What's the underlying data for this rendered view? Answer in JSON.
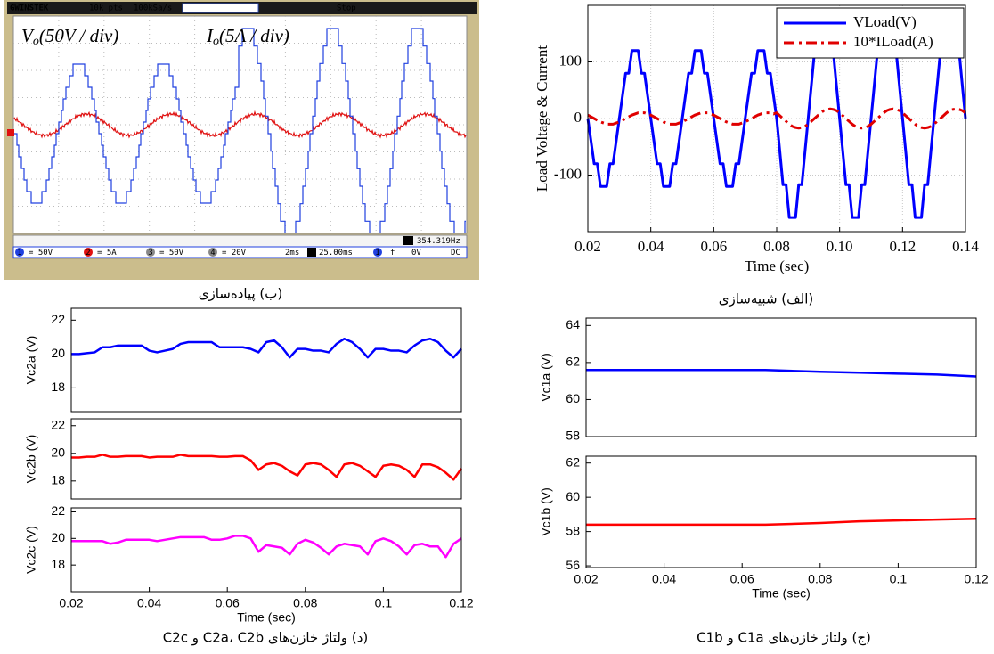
{
  "scope": {
    "brand": "GWINSTEK",
    "points": "10k pts",
    "rate": "100kSa/s",
    "state": "Stop",
    "vo": {
      "symbol": "V",
      "sub": "o",
      "scale": "(50V / div)"
    },
    "io": {
      "symbol": "I",
      "sub": "o",
      "scale": "(5A / div)"
    },
    "freq_icon": "F",
    "frequency": "354.319Hz",
    "channels": [
      {
        "id": "1",
        "scale": "= 50V"
      },
      {
        "id": "2",
        "scale": "= 5A"
      },
      {
        "id": "3",
        "scale": "= 50V"
      },
      {
        "id": "4",
        "scale": "= 20V"
      }
    ],
    "timebase": "2ms",
    "delay_icon": "H",
    "delay": "25.00ms",
    "trigger": {
      "source": "1",
      "slope": "f",
      "level": "0V",
      "coupling": "DC"
    }
  },
  "captions": {
    "b": "(ب) پیاده‌سازی",
    "a": "(الف) شبیه‌سازی",
    "d": "(د) ولتاژ خازن‌های C2a، C2b و C2c",
    "c": "(ج) ولتاژ خازن‌های C1a و C1b"
  },
  "chart_data": [
    {
      "type": "line",
      "ylabel": "Load Voltage & Current",
      "xlabel": "Time (sec)",
      "grid": true,
      "legend": "upper right",
      "xlim": [
        0.02,
        0.14
      ],
      "ylim": [
        -200,
        200
      ],
      "xticks": [
        0.02,
        0.04,
        0.06,
        0.08,
        {
          "value": 0.1,
          "label": "0.10"
        },
        0.12,
        0.14
      ],
      "yticks": [
        -100,
        0,
        100
      ],
      "x": [
        0.02,
        0.021,
        0.022,
        0.023,
        0.024,
        0.025,
        0.026,
        0.027,
        0.028,
        0.029,
        0.03,
        0.031,
        0.032,
        0.033,
        0.034,
        0.035,
        0.036,
        0.037,
        0.038,
        0.039,
        0.04,
        0.041,
        0.042,
        0.043,
        0.044,
        0.045,
        0.046,
        0.047,
        0.048,
        0.049,
        0.05,
        0.051,
        0.052,
        0.053,
        0.054,
        0.055,
        0.056,
        0.057,
        0.058,
        0.059,
        0.06,
        0.061,
        0.062,
        0.063,
        0.064,
        0.065,
        0.066,
        0.067,
        0.068,
        0.069,
        0.07,
        0.071,
        0.072,
        0.073,
        0.074,
        0.075,
        0.076,
        0.077,
        0.078,
        0.079,
        0.08,
        0.081,
        0.082,
        0.083,
        0.084,
        0.085,
        0.086,
        0.087,
        0.088,
        0.089,
        0.09,
        0.091,
        0.092,
        0.093,
        0.094,
        0.095,
        0.096,
        0.097,
        0.098,
        0.099,
        0.1,
        0.101,
        0.102,
        0.103,
        0.104,
        0.105,
        0.106,
        0.107,
        0.108,
        0.109,
        0.11,
        0.111,
        0.112,
        0.113,
        0.114,
        0.115,
        0.116,
        0.117,
        0.118,
        0.119,
        0.12,
        0.121,
        0.122,
        0.123,
        0.124,
        0.125,
        0.126,
        0.127,
        0.128,
        0.129,
        0.13,
        0.131,
        0.132,
        0.133,
        0.134,
        0.135,
        0.136,
        0.137,
        0.138,
        0.139,
        0.14
      ],
      "series": [
        {
          "name": "VLoad(V)",
          "color": "#0000ff",
          "linestyle": "solid",
          "values": [
            0,
            -40,
            -80,
            -80,
            -120,
            -120,
            -120,
            -80,
            -80,
            -40,
            0,
            40,
            80,
            80,
            120,
            120,
            120,
            80,
            80,
            40,
            0,
            -40,
            -80,
            -80,
            -120,
            -120,
            -120,
            -80,
            -80,
            -40,
            0,
            40,
            80,
            80,
            120,
            120,
            120,
            80,
            80,
            40,
            0,
            -40,
            -80,
            -80,
            -120,
            -120,
            -120,
            -80,
            -80,
            -40,
            0,
            40,
            80,
            80,
            120,
            120,
            120,
            80,
            80,
            40,
            0,
            -58,
            -117,
            -117,
            -175,
            -175,
            -175,
            -117,
            -117,
            -58,
            0,
            58,
            117,
            117,
            175,
            175,
            175,
            117,
            117,
            58,
            0,
            -58,
            -117,
            -117,
            -175,
            -175,
            -175,
            -117,
            -117,
            -58,
            0,
            58,
            117,
            117,
            175,
            175,
            175,
            117,
            117,
            58,
            0,
            -58,
            -117,
            -117,
            -175,
            -175,
            -175,
            -117,
            -117,
            -58,
            0,
            58,
            117,
            117,
            175,
            175,
            175,
            117,
            117,
            58,
            0
          ]
        },
        {
          "name": "10*ILoad(A)",
          "color": "#e00000",
          "linestyle": "dashdot",
          "values": [
            6,
            3,
            0,
            -3,
            -6,
            -8,
            -10,
            -10,
            -10,
            -8,
            -6,
            -3,
            0,
            3,
            6,
            8,
            10,
            10,
            10,
            8,
            6,
            3,
            0,
            -3,
            -6,
            -8,
            -10,
            -10,
            -10,
            -8,
            -6,
            -3,
            0,
            3,
            6,
            8,
            10,
            10,
            10,
            8,
            6,
            3,
            0,
            -3,
            -6,
            -8,
            -10,
            -10,
            -10,
            -8,
            -6,
            -3,
            0,
            3,
            6,
            8,
            10,
            10,
            10,
            8,
            10,
            5,
            0,
            -5,
            -10,
            -14,
            -16,
            -17,
            -16,
            -14,
            -10,
            -5,
            0,
            5,
            10,
            14,
            16,
            17,
            16,
            14,
            10,
            5,
            0,
            -5,
            -10,
            -14,
            -16,
            -17,
            -16,
            -14,
            -10,
            -5,
            0,
            5,
            10,
            14,
            16,
            17,
            16,
            14,
            10,
            5,
            0,
            -5,
            -10,
            -14,
            -16,
            -17,
            -16,
            -14,
            -10,
            -5,
            0,
            5,
            10,
            14,
            16,
            17,
            16,
            14,
            10
          ]
        }
      ]
    },
    {
      "type": "line",
      "ylabel": "Vc2a (V)",
      "grid": false,
      "xlim": [
        0.02,
        0.12
      ],
      "ylim": [
        16.6,
        22.7
      ],
      "yticks": [
        18,
        20,
        22
      ],
      "x": [
        0.02,
        0.022,
        0.024,
        0.026,
        0.028,
        0.03,
        0.032,
        0.034,
        0.036,
        0.038,
        0.04,
        0.042,
        0.044,
        0.046,
        0.048,
        0.05,
        0.052,
        0.054,
        0.056,
        0.058,
        0.06,
        0.062,
        0.064,
        0.066,
        0.068,
        0.07,
        0.072,
        0.074,
        0.076,
        0.078,
        0.08,
        0.082,
        0.084,
        0.086,
        0.088,
        0.09,
        0.092,
        0.094,
        0.096,
        0.098,
        0.1,
        0.102,
        0.104,
        0.106,
        0.108,
        0.11,
        0.112,
        0.114,
        0.116,
        0.118,
        0.12
      ],
      "series": [
        {
          "color": "#0000ff",
          "linestyle": "solid",
          "values": [
            20.0,
            20.0,
            20.05,
            20.1,
            20.4,
            20.4,
            20.5,
            20.5,
            20.5,
            20.5,
            20.2,
            20.1,
            20.2,
            20.3,
            20.6,
            20.7,
            20.7,
            20.7,
            20.7,
            20.4,
            20.4,
            20.4,
            20.4,
            20.3,
            20.1,
            20.7,
            20.8,
            20.4,
            19.8,
            20.3,
            20.3,
            20.2,
            20.2,
            20.1,
            20.6,
            20.9,
            20.7,
            20.3,
            19.8,
            20.3,
            20.3,
            20.2,
            20.2,
            20.1,
            20.5,
            20.8,
            20.9,
            20.7,
            20.2,
            19.8,
            20.3
          ]
        }
      ]
    },
    {
      "type": "line",
      "ylabel": "Vc2b (V)",
      "grid": false,
      "xlim": [
        0.02,
        0.12
      ],
      "ylim": [
        16.7,
        22.5
      ],
      "yticks": [
        18,
        20,
        22
      ],
      "x": [
        0.02,
        0.022,
        0.024,
        0.026,
        0.028,
        0.03,
        0.032,
        0.034,
        0.036,
        0.038,
        0.04,
        0.042,
        0.044,
        0.046,
        0.048,
        0.05,
        0.052,
        0.054,
        0.056,
        0.058,
        0.06,
        0.062,
        0.064,
        0.066,
        0.068,
        0.07,
        0.072,
        0.074,
        0.076,
        0.078,
        0.08,
        0.082,
        0.084,
        0.086,
        0.088,
        0.09,
        0.092,
        0.094,
        0.096,
        0.098,
        0.1,
        0.102,
        0.104,
        0.106,
        0.108,
        0.11,
        0.112,
        0.114,
        0.116,
        0.118,
        0.12
      ],
      "series": [
        {
          "color": "#ff0000",
          "linestyle": "solid",
          "values": [
            19.7,
            19.7,
            19.75,
            19.75,
            19.9,
            19.75,
            19.75,
            19.8,
            19.8,
            19.8,
            19.7,
            19.75,
            19.75,
            19.75,
            19.9,
            19.8,
            19.8,
            19.8,
            19.8,
            19.75,
            19.75,
            19.8,
            19.8,
            19.5,
            18.8,
            19.2,
            19.3,
            19.1,
            18.7,
            18.4,
            19.2,
            19.3,
            19.2,
            18.8,
            18.3,
            19.2,
            19.3,
            19.1,
            18.7,
            18.3,
            19.1,
            19.2,
            19.1,
            18.8,
            18.3,
            19.2,
            19.2,
            19.0,
            18.6,
            18.1,
            18.9
          ]
        }
      ]
    },
    {
      "type": "line",
      "ylabel": "Vc2c (V)",
      "xlabel": "Time (sec)",
      "grid": false,
      "xlim": [
        0.02,
        0.12
      ],
      "ylim": [
        16,
        22.3
      ],
      "yticks": [
        18,
        20,
        22
      ],
      "xticks": [
        0.02,
        0.04,
        0.06,
        0.08,
        0.1,
        0.12
      ],
      "x": [
        0.02,
        0.022,
        0.024,
        0.026,
        0.028,
        0.03,
        0.032,
        0.034,
        0.036,
        0.038,
        0.04,
        0.042,
        0.044,
        0.046,
        0.048,
        0.05,
        0.052,
        0.054,
        0.056,
        0.058,
        0.06,
        0.062,
        0.064,
        0.066,
        0.068,
        0.07,
        0.072,
        0.074,
        0.076,
        0.078,
        0.08,
        0.082,
        0.084,
        0.086,
        0.088,
        0.09,
        0.092,
        0.094,
        0.096,
        0.098,
        0.1,
        0.102,
        0.104,
        0.106,
        0.108,
        0.11,
        0.112,
        0.114,
        0.116,
        0.118,
        0.12
      ],
      "series": [
        {
          "color": "#ff00ff",
          "linestyle": "solid",
          "values": [
            19.8,
            19.8,
            19.8,
            19.8,
            19.8,
            19.6,
            19.7,
            19.9,
            19.9,
            19.9,
            19.9,
            19.8,
            19.9,
            20.0,
            20.1,
            20.1,
            20.1,
            20.1,
            19.9,
            19.9,
            20.0,
            20.2,
            20.2,
            20.0,
            19.0,
            19.5,
            19.4,
            19.3,
            18.8,
            19.6,
            19.9,
            19.7,
            19.3,
            18.8,
            19.4,
            19.6,
            19.5,
            19.4,
            18.8,
            19.8,
            20.0,
            19.8,
            19.4,
            18.8,
            19.5,
            19.6,
            19.4,
            19.4,
            18.6,
            19.6,
            20.0
          ]
        }
      ]
    },
    {
      "type": "line",
      "ylabel": "Vc1a (V)",
      "grid": false,
      "xlim": [
        0.02,
        0.12
      ],
      "ylim": [
        58,
        64.4
      ],
      "yticks": [
        58,
        60,
        62,
        64
      ],
      "x": [
        0.02,
        0.066,
        0.08,
        0.09,
        0.1,
        0.11,
        0.12
      ],
      "series": [
        {
          "color": "#0000ff",
          "linestyle": "solid",
          "values": [
            61.6,
            61.6,
            61.5,
            61.45,
            61.4,
            61.35,
            61.25
          ]
        }
      ]
    },
    {
      "type": "line",
      "ylabel": "Vc1b (V)",
      "xlabel": "Time (sec)",
      "grid": false,
      "xlim": [
        0.02,
        0.12
      ],
      "ylim": [
        55.9,
        62.4
      ],
      "yticks": [
        56,
        58,
        60,
        62
      ],
      "xticks": [
        0.02,
        0.04,
        0.06,
        0.08,
        0.1,
        0.12
      ],
      "x": [
        0.02,
        0.066,
        0.08,
        0.09,
        0.1,
        0.11,
        0.12
      ],
      "series": [
        {
          "color": "#ff0000",
          "linestyle": "solid",
          "values": [
            58.4,
            58.4,
            58.5,
            58.6,
            58.65,
            58.7,
            58.75
          ]
        }
      ]
    }
  ]
}
